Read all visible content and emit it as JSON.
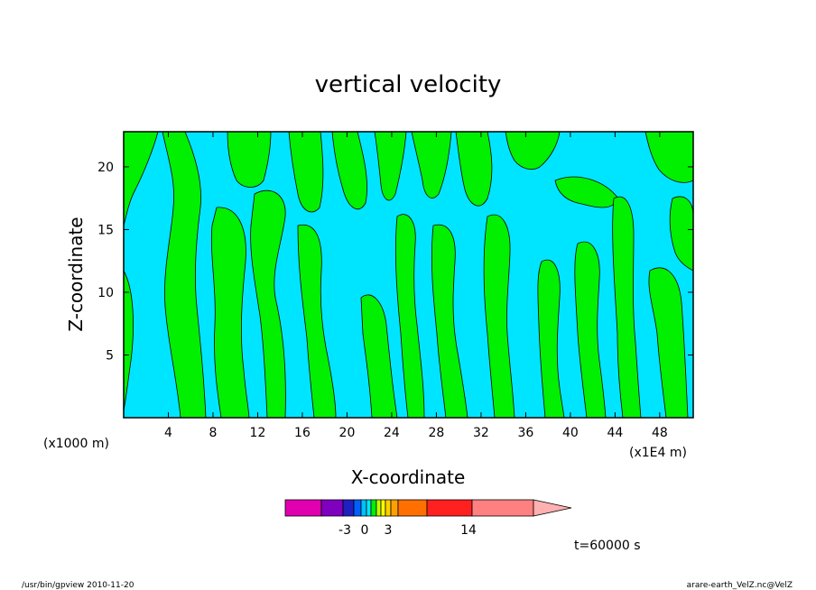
{
  "chart_data": {
    "type": "heatmap",
    "title": "vertical velocity",
    "xlabel": "X-coordinate",
    "ylabel": "Z-coordinate",
    "x_unit_left": "(x1000 m)",
    "x_unit_right": "(x1E4 m)",
    "xlim": [
      0,
      51
    ],
    "ylim": [
      0,
      22.8
    ],
    "x_ticks": [
      4,
      8,
      12,
      16,
      20,
      24,
      28,
      32,
      36,
      40,
      44,
      48
    ],
    "y_ticks": [
      5,
      10,
      15,
      20
    ],
    "fields": {
      "negative_color": "#00e5ff",
      "positive_color": "#00f000",
      "contour_color": "#000000"
    },
    "colorbar": {
      "segments": [
        {
          "color": "#e000b0"
        },
        {
          "color": "#8000c0"
        },
        {
          "color": "#2020c0"
        },
        {
          "color": "#0060ff"
        },
        {
          "color": "#00c0ff"
        },
        {
          "color": "#00e5ff"
        },
        {
          "color": "#00f000"
        },
        {
          "color": "#c0ff00"
        },
        {
          "color": "#ffff00"
        },
        {
          "color": "#ffd000"
        },
        {
          "color": "#ffa000"
        },
        {
          "color": "#ff7000"
        },
        {
          "color": "#ff2020"
        },
        {
          "color": "#ff8080"
        }
      ],
      "tip_color": "#ffb0b0",
      "labels": [
        "-3",
        "0",
        "3",
        "14"
      ]
    }
  },
  "annotations": {
    "time": "t=60000 s",
    "footer_left": "/usr/bin/gpview   2010-11-20",
    "footer_right": "arare-earth_VelZ.nc@VelZ"
  }
}
